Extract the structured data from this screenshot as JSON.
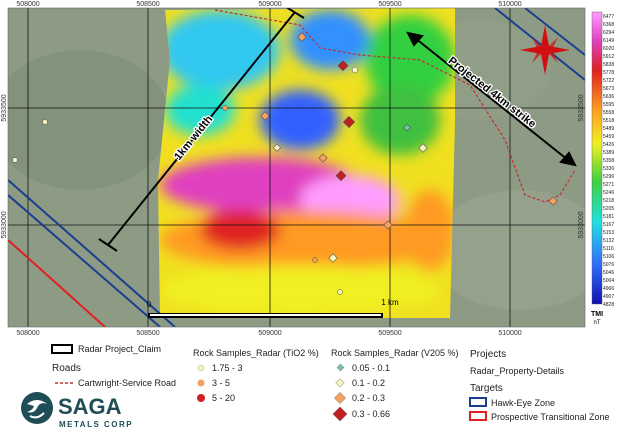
{
  "map": {
    "grid_x": [
      "508000",
      "508500",
      "509000",
      "509500",
      "510000"
    ],
    "grid_y": [
      "5933500",
      "5933000"
    ],
    "annotations": {
      "strike": "Projected 4km strike",
      "width": "1km width",
      "scale_zero": "0",
      "scale_end": "1 km"
    },
    "colorbar": {
      "title": "TMI",
      "unit": "nT",
      "labels": [
        "6477",
        "6368",
        "6294",
        "6149",
        "6020",
        "5912",
        "5838",
        "5778",
        "5722",
        "5673",
        "5636",
        "5595",
        "5558",
        "5518",
        "5489",
        "5459",
        "5426",
        "5389",
        "5358",
        "5336",
        "5296",
        "5271",
        "5246",
        "5218",
        "5205",
        "5181",
        "5167",
        "5153",
        "5132",
        "5116",
        "5106",
        "5076",
        "5046",
        "5004",
        "4966",
        "4907",
        "4828"
      ]
    }
  },
  "legend": {
    "claim": "Radar Project_Claim",
    "roads": "Roads",
    "road": "Cartwright-Service Road",
    "tio2": {
      "title": "Rock Samples_Radar (TiO2 %)",
      "items": [
        "1.75 - 3",
        "3 - 5",
        "5 - 20"
      ]
    },
    "v2o5": {
      "title": "Rock Samples_Radar (V205 %)",
      "items": [
        "0.05 - 0.1",
        "0.1 - 0.2",
        "0.2 - 0.3",
        "0.3 - 0.66"
      ]
    },
    "projects": "Projects",
    "project": "Radar_Property-Details",
    "targets": "Targets",
    "zones": [
      "Hawk-Eye Zone",
      "Prospective Transitional Zone"
    ]
  },
  "logo": {
    "name": "SAGA",
    "sub": "METALS CORP"
  }
}
